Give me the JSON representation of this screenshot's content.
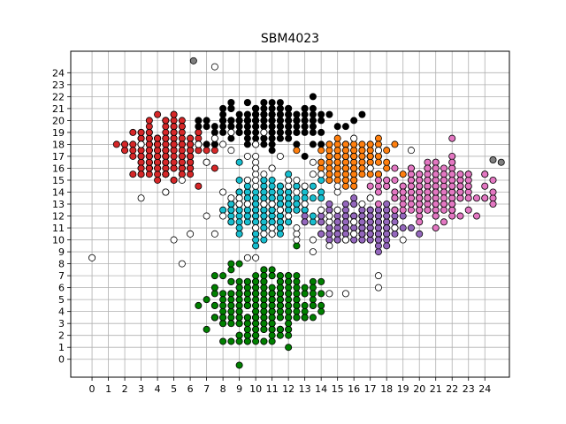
{
  "chart_data": {
    "type": "scatter",
    "title": "SBM4023",
    "xlabel": "",
    "ylabel": "",
    "xlim": [
      -1.3,
      25.5
    ],
    "ylim": [
      -1.5,
      25.8
    ],
    "grid": true,
    "xticks": [
      "0",
      "1",
      "2",
      "3",
      "4",
      "5",
      "6",
      "7",
      "8",
      "9",
      "10",
      "11",
      "12",
      "13",
      "14",
      "15",
      "16",
      "17",
      "18",
      "19",
      "20",
      "21",
      "22",
      "23",
      "24"
    ],
    "yticks": [
      "0",
      "1",
      "2",
      "3",
      "4",
      "5",
      "6",
      "7",
      "8",
      "9",
      "10",
      "11",
      "12",
      "13",
      "14",
      "15",
      "16",
      "17",
      "18",
      "19",
      "20",
      "21",
      "22",
      "23",
      "24"
    ],
    "series": [
      {
        "color": "#d62728",
        "center": [
          4.6,
          17.3
        ],
        "spread": [
          2.2,
          2.3
        ],
        "count": 260
      },
      {
        "color": "#000000",
        "center": [
          10.7,
          19.9
        ],
        "spread": [
          3.0,
          1.5
        ],
        "count": 230
      },
      {
        "color": "#ff7f0e",
        "center": [
          15.8,
          16.4
        ],
        "spread": [
          2.0,
          1.7
        ],
        "count": 150
      },
      {
        "color": "#17becf",
        "center": [
          10.9,
          12.8
        ],
        "spread": [
          2.3,
          2.0
        ],
        "count": 230
      },
      {
        "color": "#9467bd",
        "center": [
          16.4,
          11.3
        ],
        "spread": [
          2.6,
          1.6
        ],
        "count": 200
      },
      {
        "color": "#e377c2",
        "center": [
          20.8,
          14.2
        ],
        "spread": [
          2.4,
          2.0
        ],
        "count": 230
      },
      {
        "color": "#008000",
        "center": [
          10.5,
          4.4
        ],
        "spread": [
          2.7,
          2.7
        ],
        "count": 320
      },
      {
        "color": "#ffffff",
        "center": [
          11.0,
          14.0
        ],
        "spread": [
          6.5,
          6.0
        ],
        "count": 90
      }
    ],
    "highlight_points": [
      {
        "x": 6.2,
        "y": 25.0,
        "color": "#7f7f7f"
      },
      {
        "x": 25.0,
        "y": 16.5,
        "color": "#7f7f7f"
      },
      {
        "x": 24.5,
        "y": 16.7,
        "color": "#7f7f7f"
      }
    ]
  }
}
